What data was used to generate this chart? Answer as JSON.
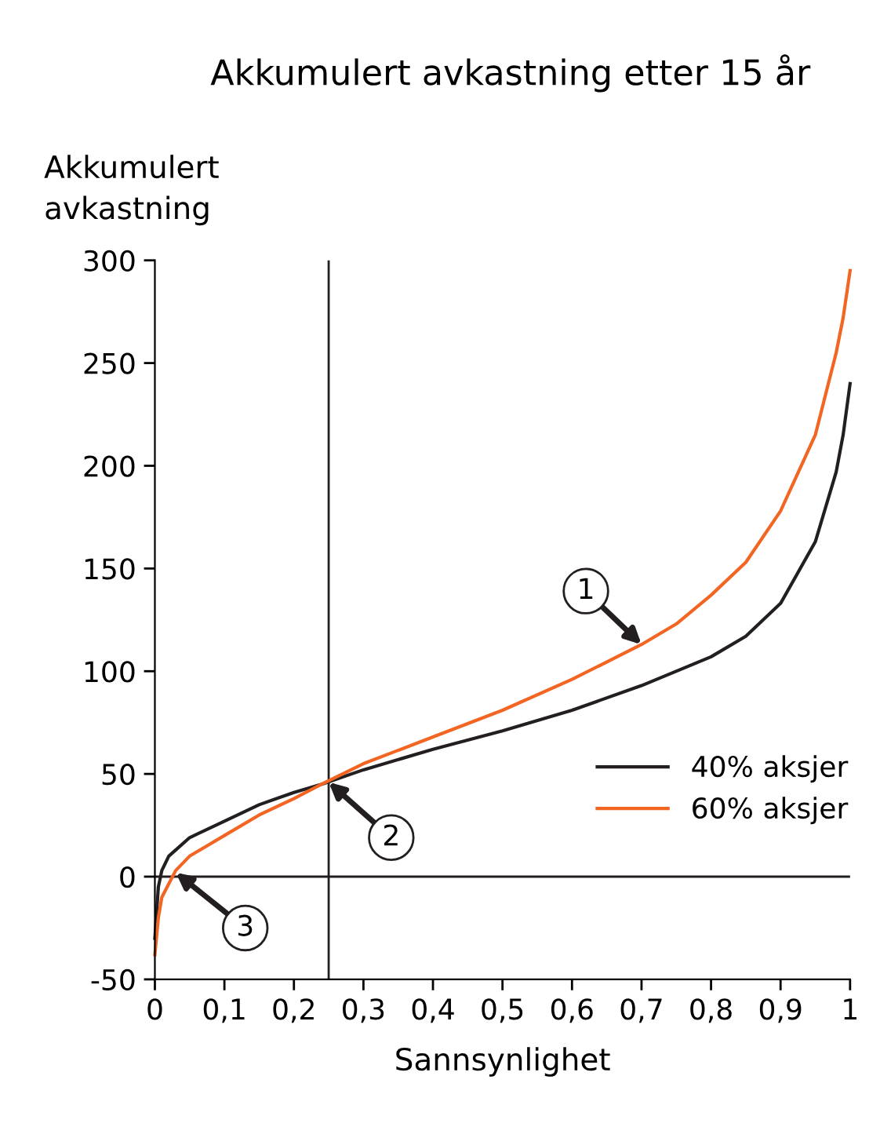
{
  "chart_data": {
    "type": "line",
    "title": "Akkumulert avkastning etter 15 år",
    "xlabel": "Sannsynlighet",
    "ylabel": "Akkumulert\navkastning",
    "xlim": [
      0,
      1
    ],
    "ylim": [
      -50,
      300
    ],
    "xticks": [
      0,
      {
        "value": 0.1,
        "label": "0,1"
      },
      {
        "value": 0.2,
        "label": "0,2"
      },
      {
        "value": 0.3,
        "label": "0,3"
      },
      {
        "value": 0.4,
        "label": "0,4"
      },
      {
        "value": 0.5,
        "label": "0,5"
      },
      {
        "value": 0.6,
        "label": "0,6"
      },
      {
        "value": 0.7,
        "label": "0,7"
      },
      {
        "value": 0.8,
        "label": "0,8"
      },
      {
        "value": 0.9,
        "label": "0,9"
      },
      1
    ],
    "yticks": [
      -50,
      0,
      50,
      100,
      150,
      200,
      250,
      300
    ],
    "grid": false,
    "legend": "bottom right",
    "marker": "none",
    "line_style": "solid",
    "ref_lines": [
      {
        "axis": "x",
        "value": 0.25,
        "color": "#231f20"
      },
      {
        "axis": "y",
        "value": 0,
        "color": "#231f20"
      }
    ],
    "annotations": [
      {
        "text": "1",
        "x": 0.7,
        "y": 113
      },
      {
        "text": "2",
        "x": 0.25,
        "y": 46
      },
      {
        "text": "3",
        "x": 0.03,
        "y": 2
      }
    ],
    "series": [
      {
        "name": "40% aksjer",
        "color": "#231f20",
        "x": [
          0,
          0.005,
          0.01,
          0.02,
          0.05,
          0.1,
          0.15,
          0.2,
          0.24,
          0.3,
          0.4,
          0.5,
          0.6,
          0.7,
          0.8,
          0.85,
          0.9,
          0.95,
          0.98,
          0.99,
          1
        ],
        "values": [
          -30,
          -5,
          3,
          10,
          19,
          27,
          35,
          41,
          45,
          52,
          62,
          71,
          81,
          93,
          107,
          117,
          133,
          163,
          197,
          215,
          240
        ]
      },
      {
        "name": "60% aksjer",
        "color": "#f26522",
        "x": [
          0,
          0.005,
          0.01,
          0.03,
          0.05,
          0.1,
          0.15,
          0.2,
          0.24,
          0.3,
          0.4,
          0.5,
          0.6,
          0.7,
          0.75,
          0.8,
          0.85,
          0.9,
          0.95,
          0.98,
          0.99,
          1
        ],
        "values": [
          -38,
          -20,
          -10,
          3,
          10,
          20,
          30,
          38,
          45,
          55,
          68,
          81,
          96,
          113,
          123,
          137,
          153,
          178,
          215,
          255,
          272,
          295
        ]
      }
    ]
  }
}
